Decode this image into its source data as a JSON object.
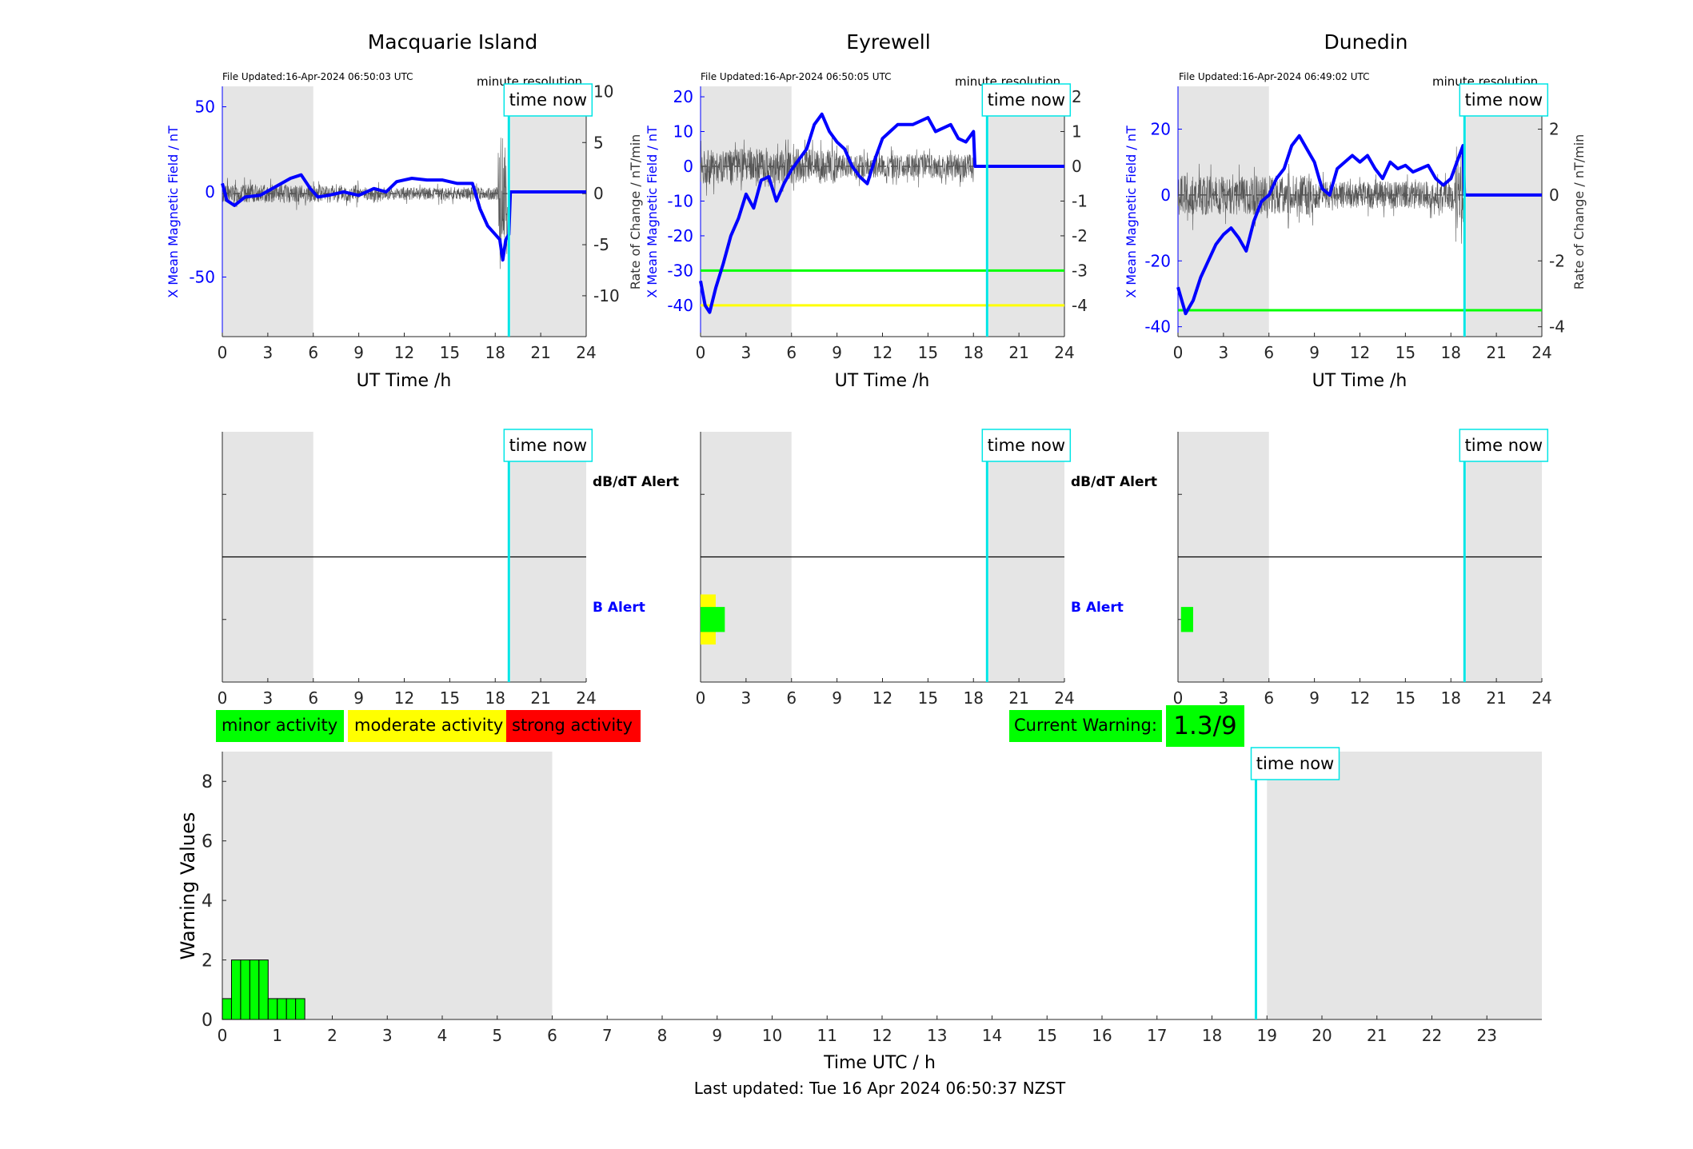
{
  "footer": {
    "last_updated": "Last updated: Tue 16 Apr 2024 06:50:37 NZST"
  },
  "colors": {
    "field": "#0000ff",
    "rate": "#555555",
    "time_now": "#00e5e5",
    "night_shading": "#e5e5e5",
    "minor": "#00ff00",
    "moderate": "#ffff00",
    "strong": "#ff0000",
    "green_threshold": "#00ff00",
    "yellow_threshold": "#ffff00",
    "b_alert_label": "#0000ff"
  },
  "time_now_label": "time now",
  "legend": {
    "minor": "minor activity",
    "moderate": "moderate activity",
    "strong": "strong activity"
  },
  "current_warning": {
    "label": "Current Warning:",
    "value": "1.3/9"
  },
  "chart_data": [
    {
      "station": "Macquarie Island",
      "type": "line",
      "file_updated": "File Updated:16-Apr-2024 06:50:03 UTC",
      "resolution_label": "minute resolution",
      "xlabel": "UT Time /h",
      "ylabel_left": "X Mean Magnetic Field / nT",
      "ylabel_right": "",
      "xlim": [
        0,
        24
      ],
      "xticks": [
        0,
        3,
        6,
        9,
        12,
        15,
        18,
        21,
        24
      ],
      "ylim_left": [
        -85,
        62
      ],
      "yticks_left": [
        -50,
        0,
        50
      ],
      "ylim_right": [
        -14,
        10.5
      ],
      "yticks_right": [
        -10,
        -5,
        0,
        5,
        10
      ],
      "night": [
        [
          0,
          6
        ],
        [
          19,
          24
        ]
      ],
      "time_now": 18.9,
      "thresholds": [],
      "field_series": {
        "name": "X Mean Magnetic Field",
        "x": [
          0,
          0.3,
          0.8,
          1.5,
          2.5,
          3.5,
          4.5,
          5.2,
          5.8,
          6.3,
          7,
          8,
          9,
          10,
          10.8,
          11.5,
          12.5,
          13.5,
          14.5,
          15.5,
          16.5,
          17,
          17.5,
          18,
          18.3,
          18.5,
          18.7,
          18.9,
          19,
          24
        ],
        "y": [
          5,
          -5,
          -8,
          -3,
          -2,
          3,
          8,
          10,
          2,
          -3,
          -2,
          0,
          -2,
          2,
          0,
          6,
          8,
          7,
          7,
          5,
          5,
          -10,
          -20,
          -25,
          -28,
          -40,
          -28,
          -25,
          0,
          0
        ]
      },
      "rate_series": {
        "name": "Rate of Change",
        "amp": 0.9,
        "start": 0,
        "end": 18.8,
        "burst": [
          18.2,
          18.8
        ],
        "burst_amp": 6
      }
    },
    {
      "station": "Eyrewell",
      "type": "line",
      "file_updated": "File Updated:16-Apr-2024 06:50:05 UTC",
      "resolution_label": "minute resolution",
      "xlabel": "UT Time /h",
      "ylabel_left": "X Mean Magnetic Field / nT",
      "ylabel_right": "Rate of Change / nT/min",
      "xlim": [
        0,
        24
      ],
      "xticks": [
        0,
        3,
        6,
        9,
        12,
        15,
        18,
        21,
        24
      ],
      "ylim_left": [
        -49,
        23
      ],
      "yticks_left": [
        -40,
        -30,
        -20,
        -10,
        0,
        10,
        20
      ],
      "ylim_right": [
        -4.9,
        2.3
      ],
      "yticks_right": [
        -4,
        -3,
        -2,
        -1,
        0,
        1,
        2
      ],
      "night": [
        [
          0,
          6
        ],
        [
          19,
          24
        ]
      ],
      "time_now": 18.9,
      "thresholds": [
        {
          "y": -30,
          "color": "#00ff00"
        },
        {
          "y": -40,
          "color": "#ffff00"
        }
      ],
      "field_series": {
        "name": "X Mean Magnetic Field",
        "x": [
          0,
          0.3,
          0.6,
          1,
          1.5,
          2,
          2.5,
          3,
          3.5,
          4,
          4.5,
          5,
          5.5,
          6,
          6.5,
          7,
          7.5,
          8,
          8.5,
          9,
          9.5,
          10,
          10.5,
          11,
          11.5,
          12,
          12.5,
          13,
          14,
          15,
          15.5,
          16,
          16.5,
          17,
          17.5,
          18,
          18.1,
          24
        ],
        "y": [
          -33,
          -40,
          -42,
          -35,
          -28,
          -20,
          -15,
          -8,
          -12,
          -4,
          -3,
          -10,
          -5,
          -1,
          2,
          5,
          12,
          15,
          10,
          7,
          5,
          0,
          -3,
          -5,
          2,
          8,
          10,
          12,
          12,
          14,
          10,
          11,
          12,
          8,
          7,
          10,
          0,
          0
        ]
      },
      "rate_series": {
        "name": "Rate of Change",
        "amp": 0.5,
        "start": 0,
        "end": 18.0,
        "burst": [],
        "burst_amp": 0
      }
    },
    {
      "station": "Dunedin",
      "type": "line",
      "file_updated": "File Updated:16-Apr-2024 06:49:02 UTC",
      "resolution_label": "minute resolution",
      "xlabel": "UT Time /h",
      "ylabel_left": "X Mean Magnetic Field / nT",
      "ylabel_right": "Rate of Change / nT/min",
      "xlim": [
        0,
        24
      ],
      "xticks": [
        0,
        3,
        6,
        9,
        12,
        15,
        18,
        21,
        24
      ],
      "ylim_left": [
        -43,
        33
      ],
      "yticks_left": [
        -40,
        -20,
        0,
        20
      ],
      "ylim_right": [
        -4.3,
        3.3
      ],
      "yticks_right": [
        -4,
        -2,
        0,
        2
      ],
      "night": [
        [
          0,
          6
        ],
        [
          19,
          24
        ]
      ],
      "time_now": 18.9,
      "thresholds": [
        {
          "y": -35,
          "color": "#00ff00"
        }
      ],
      "field_series": {
        "name": "X Mean Magnetic Field",
        "x": [
          0,
          0.5,
          1,
          1.5,
          2,
          2.5,
          3,
          3.5,
          4,
          4.5,
          5,
          5.5,
          6,
          6.5,
          7,
          7.5,
          8,
          8.5,
          9,
          9.5,
          10,
          10.5,
          11,
          11.5,
          12,
          12.5,
          13,
          13.5,
          14,
          14.5,
          15,
          15.5,
          16,
          16.5,
          17,
          17.5,
          18,
          18.4,
          18.8,
          18.9,
          24
        ],
        "y": [
          -28,
          -36,
          -32,
          -25,
          -20,
          -15,
          -12,
          -10,
          -13,
          -17,
          -8,
          -2,
          0,
          5,
          8,
          15,
          18,
          14,
          10,
          2,
          0,
          8,
          10,
          12,
          10,
          12,
          8,
          5,
          10,
          8,
          9,
          7,
          8,
          9,
          5,
          3,
          5,
          10,
          15,
          0,
          0
        ]
      },
      "rate_series": {
        "name": "Rate of Change",
        "amp": 0.6,
        "start": 0,
        "end": 18.9,
        "burst": [
          18.3,
          18.9
        ],
        "burst_amp": 1.5
      }
    },
    {
      "station": "Macquarie Island",
      "type": "bar",
      "subtype": "alert-timeline",
      "xticks": [
        0,
        3,
        6,
        9,
        12,
        15,
        18,
        21,
        24
      ],
      "xlim": [
        0,
        24
      ],
      "labels": {
        "dbdt": "dB/dT Alert",
        "b": "B Alert"
      },
      "night": [
        [
          0,
          6
        ],
        [
          19,
          24
        ]
      ],
      "time_now": 18.9,
      "b_alerts": [],
      "dbdt_alerts": []
    },
    {
      "station": "Eyrewell",
      "type": "bar",
      "subtype": "alert-timeline",
      "xticks": [
        0,
        3,
        6,
        9,
        12,
        15,
        18,
        21,
        24
      ],
      "xlim": [
        0,
        24
      ],
      "labels": {
        "dbdt": "dB/dT Alert",
        "b": "B Alert"
      },
      "night": [
        [
          0,
          6
        ],
        [
          19,
          24
        ]
      ],
      "time_now": 18.9,
      "b_alerts": [
        {
          "start": 0.0,
          "end": 1.0,
          "level": "moderate",
          "height": 1.0
        },
        {
          "start": 0.0,
          "end": 1.6,
          "level": "minor",
          "height": 0.5
        }
      ],
      "dbdt_alerts": []
    },
    {
      "station": "Dunedin",
      "type": "bar",
      "subtype": "alert-timeline",
      "xticks": [
        0,
        3,
        6,
        9,
        12,
        15,
        18,
        21,
        24
      ],
      "xlim": [
        0,
        24
      ],
      "labels": {
        "dbdt": "dB/dT Alert",
        "b": "B Alert"
      },
      "night": [
        [
          0,
          6
        ],
        [
          19,
          24
        ]
      ],
      "time_now": 18.9,
      "b_alerts": [
        {
          "start": 0.2,
          "end": 1.0,
          "level": "minor",
          "height": 0.5
        }
      ],
      "dbdt_alerts": []
    },
    {
      "type": "bar",
      "subtype": "warning-values",
      "xlabel": "Time UTC / h",
      "ylabel": "Warning Values",
      "xlim": [
        0,
        24
      ],
      "ylim": [
        0,
        9
      ],
      "xticks": [
        0,
        1,
        2,
        3,
        4,
        5,
        6,
        7,
        8,
        9,
        10,
        11,
        12,
        13,
        14,
        15,
        16,
        17,
        18,
        19,
        20,
        21,
        22,
        23
      ],
      "yticks": [
        0,
        2,
        4,
        6,
        8
      ],
      "night": [
        [
          0,
          6
        ],
        [
          19,
          24
        ]
      ],
      "time_now": 18.8,
      "bin_width": 0.1667,
      "x": [
        0.0,
        0.1667,
        0.3333,
        0.5,
        0.6667,
        0.8333,
        1.0,
        1.1667,
        1.3333
      ],
      "values": [
        0.7,
        2,
        2,
        2,
        2,
        0.7,
        0.7,
        0.7,
        0.7
      ]
    }
  ]
}
